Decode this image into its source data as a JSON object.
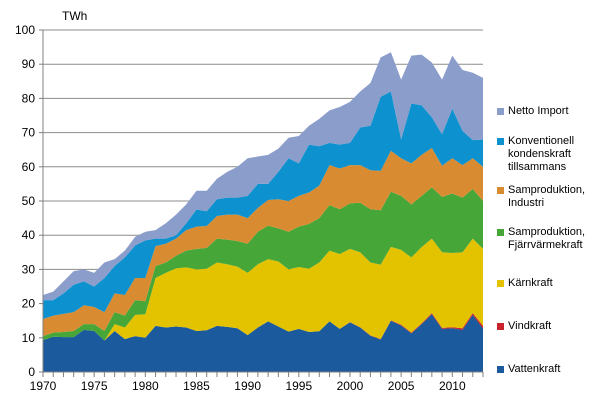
{
  "chart_data": {
    "type": "area",
    "stacked": true,
    "title": "",
    "ylabel": "TWh",
    "xlabel": "",
    "ylim": [
      0,
      100
    ],
    "yticks": [
      0,
      10,
      20,
      30,
      40,
      50,
      60,
      70,
      80,
      90,
      100
    ],
    "xticks": [
      1970,
      1975,
      1980,
      1985,
      1990,
      1995,
      2000,
      2005,
      2010
    ],
    "grid": true,
    "legend_position": "right",
    "x": [
      1970,
      1971,
      1972,
      1973,
      1974,
      1975,
      1976,
      1977,
      1978,
      1979,
      1980,
      1981,
      1982,
      1983,
      1984,
      1985,
      1986,
      1987,
      1988,
      1989,
      1990,
      1991,
      1992,
      1993,
      1994,
      1995,
      1996,
      1997,
      1998,
      1999,
      2000,
      2001,
      2002,
      2003,
      2004,
      2005,
      2006,
      2007,
      2008,
      2009,
      2010,
      2011,
      2012,
      2013
    ],
    "series": [
      {
        "name": "Vattenkraft",
        "color": "#1b5a9c",
        "values": [
          9.3,
          10.3,
          10.2,
          10.2,
          12.3,
          12,
          9.2,
          12,
          9.6,
          10.5,
          10,
          13.5,
          13,
          13.3,
          13,
          12,
          12.2,
          13.5,
          13.2,
          12.8,
          10.8,
          13,
          14.8,
          13.3,
          11.8,
          12.6,
          11.7,
          11.9,
          14.8,
          12.6,
          14.5,
          13,
          10.6,
          9.5,
          15,
          13.6,
          11.3,
          14,
          16.9,
          12.6,
          12.8,
          12.3,
          16.7,
          12.7
        ]
      },
      {
        "name": "Vindkraft",
        "color": "#c8232c",
        "values": [
          0,
          0,
          0,
          0,
          0,
          0,
          0,
          0,
          0,
          0,
          0,
          0,
          0,
          0,
          0,
          0,
          0,
          0,
          0,
          0,
          0,
          0,
          0,
          0,
          0,
          0,
          0,
          0,
          0,
          0,
          0.1,
          0.1,
          0.1,
          0.1,
          0.1,
          0.2,
          0.2,
          0.2,
          0.3,
          0.3,
          0.3,
          0.5,
          0.5,
          0.8
        ]
      },
      {
        "name": "Kärnkraft",
        "color": "#e3c200",
        "values": [
          0,
          0,
          0,
          0,
          0,
          0,
          0,
          2,
          3.4,
          6.2,
          6.9,
          14,
          16,
          17,
          17.6,
          18,
          18,
          18.5,
          18.3,
          18,
          18.2,
          18.5,
          18.2,
          19,
          18.2,
          18.1,
          18.5,
          20.1,
          20.7,
          21.9,
          21.4,
          21.9,
          21.3,
          21.8,
          21.5,
          21.9,
          22,
          22.3,
          21.8,
          22.1,
          21.7,
          22.2,
          21.8,
          22.5
        ]
      },
      {
        "name": "Samproduktion, Fjärrvärmekraft",
        "color": "#47a638",
        "values": [
          1.2,
          1.2,
          1.5,
          1.8,
          1.7,
          2,
          2.8,
          3.5,
          3.5,
          4.3,
          3.8,
          3.5,
          3,
          3.7,
          4.9,
          6,
          6.1,
          7,
          7.2,
          7.5,
          8.5,
          9.5,
          9.8,
          9.7,
          11,
          11.8,
          13.1,
          13,
          13.3,
          13.1,
          13.3,
          14.5,
          15.6,
          15.9,
          16.1,
          15.8,
          15.5,
          15,
          15,
          16.2,
          17.4,
          16,
          14.5,
          14
        ]
      },
      {
        "name": "Samproduktion, Industri",
        "color": "#d98b32",
        "values": [
          5,
          5,
          5.3,
          5.5,
          5.5,
          5,
          5.5,
          5.5,
          6,
          6.5,
          6.8,
          5.8,
          5.5,
          5,
          6,
          6.5,
          6.4,
          6.6,
          7.3,
          7.7,
          7.5,
          7,
          7.5,
          8.5,
          9,
          9,
          9.2,
          9.5,
          11.7,
          11.9,
          11.2,
          11,
          11.4,
          11.5,
          12,
          11,
          12,
          12,
          11.5,
          9.1,
          10.3,
          9.5,
          9,
          10
        ]
      },
      {
        "name": "Konventionell kondenskraft tillsammans",
        "color": "#0d92cf",
        "values": [
          5.5,
          4.5,
          6,
          8,
          7,
          6,
          10,
          8,
          11,
          9.5,
          11,
          2.2,
          1.5,
          1,
          2,
          5,
          4.3,
          4.9,
          5,
          5,
          6.5,
          7,
          4.7,
          8,
          12.5,
          9.5,
          14,
          11.5,
          6.5,
          7,
          6.5,
          11,
          13,
          21.7,
          17.3,
          5.5,
          17.5,
          14.5,
          9,
          9.2,
          14.5,
          10,
          5.3,
          8
        ]
      },
      {
        "name": "Netto Import",
        "color": "#8a9dcb",
        "values": [
          1.5,
          2.5,
          3.5,
          4,
          3.5,
          4,
          4.5,
          2,
          2,
          2.5,
          2.5,
          2.5,
          4.5,
          6,
          5.5,
          5.5,
          6,
          6,
          7.5,
          9,
          11,
          8,
          8.5,
          6.8,
          6,
          8,
          5.5,
          8,
          9.5,
          11,
          12,
          10.5,
          12.5,
          11.5,
          11.5,
          17.5,
          14,
          14.8,
          16,
          16,
          15.5,
          17.8,
          19.7,
          18
        ]
      }
    ]
  }
}
